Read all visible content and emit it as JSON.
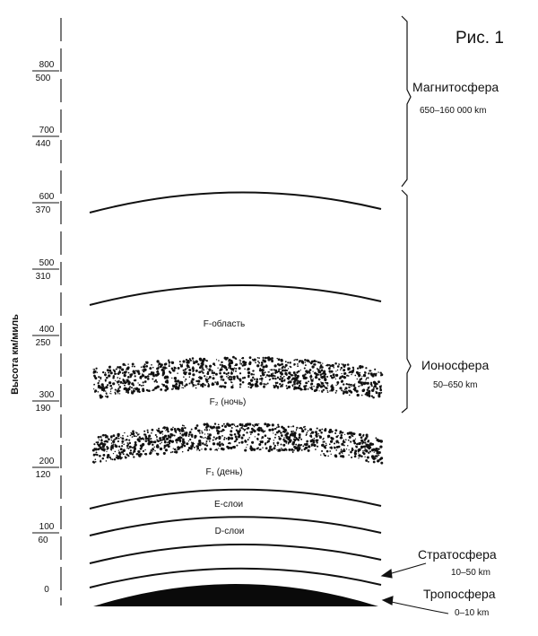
{
  "figure_label": "Рис. 1",
  "axis_label": "Высота км/миль",
  "ticks": [
    {
      "km": "800",
      "mi": "500"
    },
    {
      "km": "700",
      "mi": "440"
    },
    {
      "km": "600",
      "mi": "370"
    },
    {
      "km": "500",
      "mi": "310"
    },
    {
      "km": "400",
      "mi": "250"
    },
    {
      "km": "300",
      "mi": "190"
    },
    {
      "km": "200",
      "mi": "120"
    },
    {
      "km": "100",
      "mi": "60"
    },
    {
      "km": "0",
      "mi": ""
    }
  ],
  "layers": {
    "f_region": "F-область",
    "f2": "F₂ (ночь)",
    "f1": "F₁ (день)",
    "e_layer": "Е-слои",
    "d_layer": "D-слои"
  },
  "spheres": {
    "magnetosphere": {
      "name": "Магнитосфера",
      "range": "650–160 000 km"
    },
    "ionosphere": {
      "name": "Ионосфера",
      "range": "50–650 km"
    },
    "stratosphere": {
      "name": "Стратосфера",
      "range": "10–50 km"
    },
    "troposphere": {
      "name": "Тропосфера",
      "range": "0–10 km"
    }
  }
}
